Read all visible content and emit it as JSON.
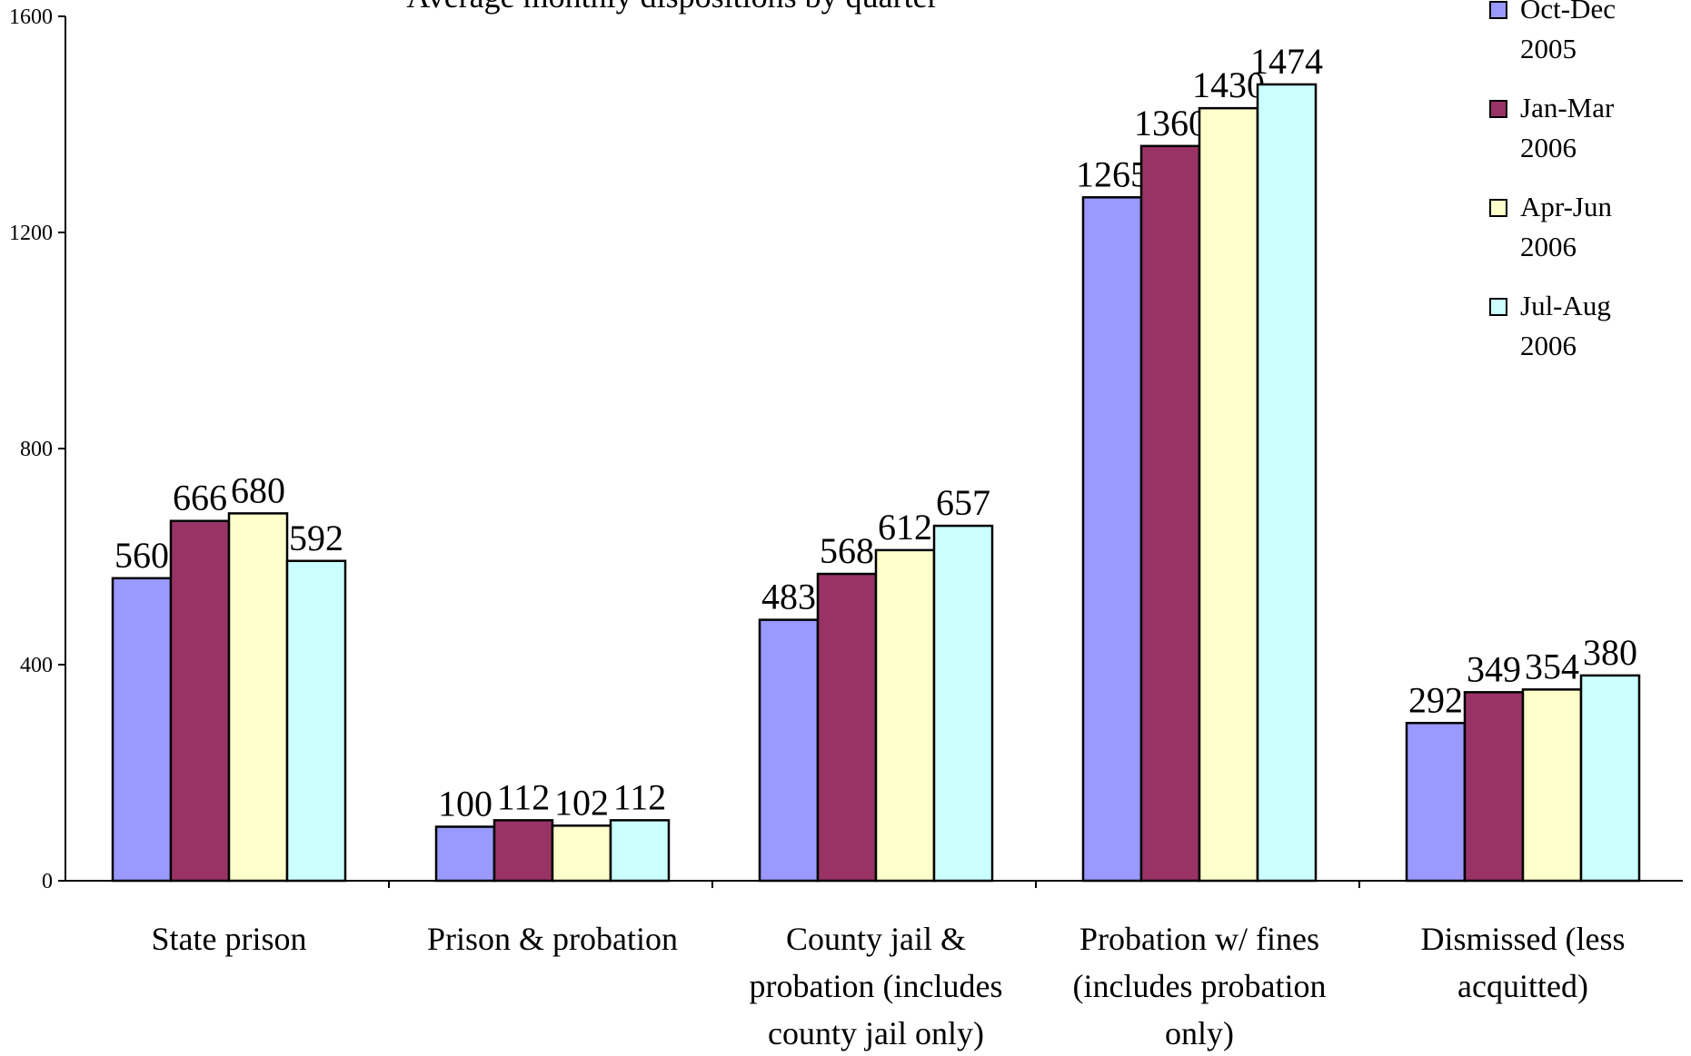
{
  "chart_data": {
    "type": "bar",
    "title": "Average monthly dispositions by quarter",
    "xlabel": "",
    "ylabel": "",
    "ylim": [
      0,
      1600
    ],
    "yticks": [
      0,
      400,
      800,
      1200,
      1600
    ],
    "grid": false,
    "legend_position": "top-right",
    "categories": [
      [
        "State prison"
      ],
      [
        "Prison & probation"
      ],
      [
        "County jail &",
        "probation (includes",
        "county jail only)"
      ],
      [
        "Probation w/ fines",
        "(includes probation",
        "only)"
      ],
      [
        "Dismissed (less",
        "acquitted)"
      ]
    ],
    "series": [
      {
        "name": [
          "Oct-Dec",
          "2005"
        ],
        "color": "#9999FF",
        "values": [
          560,
          100,
          483,
          1265,
          292
        ]
      },
      {
        "name": [
          "Jan-Mar",
          "2006"
        ],
        "color": "#993366",
        "values": [
          666,
          112,
          568,
          1360,
          349
        ]
      },
      {
        "name": [
          "Apr-Jun",
          "2006"
        ],
        "color": "#FFFFCC",
        "values": [
          680,
          102,
          612,
          1430,
          354
        ]
      },
      {
        "name": [
          "Jul-Aug",
          "2006"
        ],
        "color": "#CCFFFF",
        "values": [
          592,
          112,
          657,
          1474,
          380
        ]
      }
    ]
  }
}
